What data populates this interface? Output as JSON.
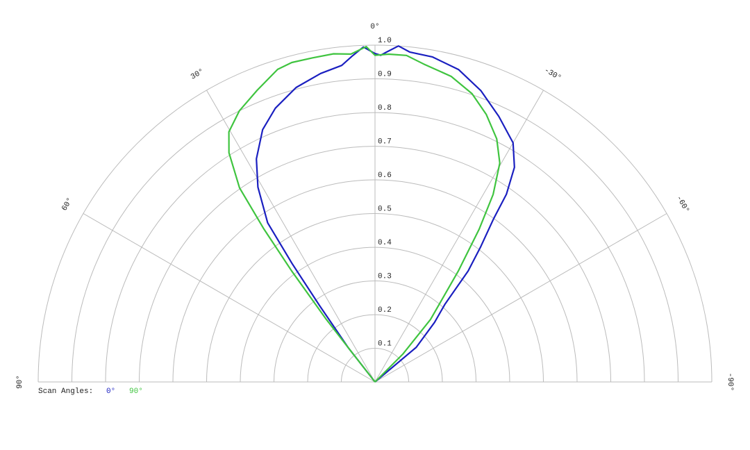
{
  "chart_data": {
    "type": "polar",
    "legend_title": "Scan Angles:",
    "rlim": [
      0,
      1
    ],
    "rticks": [
      0.1,
      0.2,
      0.3,
      0.4,
      0.5,
      0.6,
      0.7,
      0.8,
      0.9,
      {
        "value": 1,
        "label": "1.0"
      }
    ],
    "thetalim": [
      -90,
      90
    ],
    "thetaticks": [
      {
        "value": 90,
        "label": "90°"
      },
      {
        "value": 60,
        "label": "60°"
      },
      {
        "value": 30,
        "label": "30°"
      },
      {
        "value": 0,
        "label": "0°"
      },
      {
        "value": -30,
        "label": "-30°"
      },
      {
        "value": -60,
        "label": "-60°"
      },
      {
        "value": -90,
        "label": "-90°"
      }
    ],
    "series": [
      {
        "name": "0°",
        "color": "#1a1fc0",
        "x": [
          -60,
          -50,
          -45,
          -42,
          -40,
          -38,
          -36,
          -35,
          -33,
          -30,
          -25,
          -20,
          -15,
          -10,
          -6,
          -4,
          -2,
          -1,
          0,
          2,
          4,
          6,
          10,
          15,
          20,
          24,
          28,
          31,
          34,
          35,
          36,
          38,
          45
        ],
        "values": [
          0,
          0.16,
          0.25,
          0.31,
          0.43,
          0.51,
          0.6,
          0.68,
          0.76,
          0.82,
          0.87,
          0.92,
          0.96,
          0.98,
          0.985,
          1.0,
          0.98,
          0.97,
          0.975,
          0.995,
          0.97,
          0.945,
          0.93,
          0.905,
          0.865,
          0.82,
          0.75,
          0.675,
          0.57,
          0.43,
          0.28,
          0.13,
          0
        ]
      },
      {
        "name": "90°",
        "color": "#3fc43f",
        "x": [
          -55,
          -45,
          -41.6,
          -36.9,
          -34.3,
          -32.2,
          -29.7,
          -26.6,
          -22.6,
          -18.6,
          -14,
          -8.7,
          -5.5,
          -2.4,
          0,
          1.5,
          4.2,
          7.2,
          10.9,
          14.6,
          17.3,
          22,
          26.6,
          30.3,
          32.5,
          34.9,
          36,
          36.9,
          37.9,
          38,
          45
        ],
        "values": [
          0,
          0.117,
          0.248,
          0.412,
          0.549,
          0.658,
          0.748,
          0.807,
          0.86,
          0.903,
          0.935,
          0.955,
          0.974,
          0.974,
          0.97,
          0.996,
          0.976,
          0.982,
          0.98,
          0.98,
          0.972,
          0.934,
          0.9,
          0.86,
          0.807,
          0.703,
          0.561,
          0.412,
          0.235,
          0.103,
          0
        ]
      }
    ]
  }
}
